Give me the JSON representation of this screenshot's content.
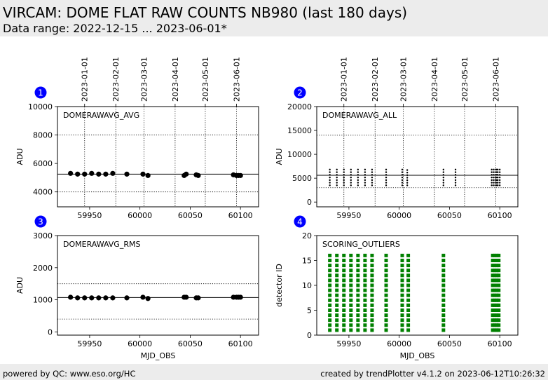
{
  "header": {
    "title": "VIRCAM: DOME FLAT RAW COUNTS NB980 (last 180 days)",
    "subtitle": "Data range: 2022-12-15 ... 2023-06-01*"
  },
  "footer": {
    "left": "powered by QC: www.eso.org/HC",
    "right": "created by trendPlotter v4.1.2 on 2023-06-12T10:26:32"
  },
  "colors": {
    "badge": "#0000ff",
    "points": "#000000",
    "scoring": "#008000"
  },
  "chart_data": [
    {
      "type": "scatter",
      "panel": "1",
      "label": "DOMERAWAVG_AVG",
      "xlabel": "",
      "ylabel": "ADU",
      "xlim": [
        59918,
        60118
      ],
      "ylim": [
        2950,
        10000
      ],
      "xticks": [
        59950,
        60000,
        60050,
        60100
      ],
      "yticks": [
        4000,
        6000,
        8000,
        10000
      ],
      "date_ticks": [
        {
          "mjd": 59945,
          "label": "2023-01-01"
        },
        {
          "mjd": 59976,
          "label": "2023-02-01"
        },
        {
          "mjd": 60004,
          "label": "2023-03-01"
        },
        {
          "mjd": 60035,
          "label": "2023-04-01"
        },
        {
          "mjd": 60065,
          "label": "2023-05-01"
        },
        {
          "mjd": 60096,
          "label": "2023-06-01"
        }
      ],
      "hlines": {
        "solid": 5250,
        "dotted": [
          4000,
          8000
        ]
      },
      "x": [
        59931,
        59938,
        59945,
        59952,
        59959,
        59966,
        59973,
        59987,
        60003,
        60008,
        60044,
        60046,
        60056,
        60058,
        60093,
        60096,
        60098,
        60100
      ],
      "y": [
        5300,
        5250,
        5250,
        5300,
        5250,
        5250,
        5300,
        5250,
        5250,
        5150,
        5150,
        5250,
        5200,
        5150,
        5200,
        5150,
        5150,
        5150
      ]
    },
    {
      "type": "scatter",
      "panel": "2",
      "label": "DOMERAWAVG_ALL",
      "xlabel": "",
      "ylabel": "ADU",
      "xlim": [
        59918,
        60118
      ],
      "ylim": [
        -1000,
        20000
      ],
      "xticks": [
        59950,
        60000,
        60050,
        60100
      ],
      "yticks": [
        0,
        5000,
        10000,
        15000,
        20000
      ],
      "date_ticks": [
        {
          "mjd": 59945,
          "label": "2023-01-01"
        },
        {
          "mjd": 59976,
          "label": "2023-02-01"
        },
        {
          "mjd": 60004,
          "label": "2023-03-01"
        },
        {
          "mjd": 60035,
          "label": "2023-04-01"
        },
        {
          "mjd": 60065,
          "label": "2023-05-01"
        },
        {
          "mjd": 60096,
          "label": "2023-06-01"
        }
      ],
      "hlines": {
        "solid": 5600,
        "dotted": [
          3000,
          14000
        ]
      },
      "x": [
        59931,
        59938,
        59945,
        59952,
        59959,
        59966,
        59973,
        59987,
        60003,
        60008,
        60044,
        60056,
        60092,
        60094,
        60096,
        60097,
        60098,
        60100
      ],
      "y_min": [
        3500,
        3500,
        3500,
        3500,
        3500,
        3500,
        3500,
        3500,
        3500,
        3500,
        3500,
        3500,
        3500,
        3500,
        3500,
        3500,
        3500,
        3500
      ],
      "y_max": [
        6800,
        6800,
        6800,
        6800,
        6800,
        6800,
        6800,
        6800,
        6800,
        6700,
        6800,
        6800,
        6800,
        6800,
        6800,
        6800,
        6800,
        6800
      ]
    },
    {
      "type": "scatter",
      "panel": "3",
      "label": "DOMERAWAVG_RMS",
      "xlabel": "MJD_OBS",
      "ylabel": "ADU",
      "xlim": [
        59918,
        60118
      ],
      "ylim": [
        -100,
        3000
      ],
      "xticks": [
        59950,
        60000,
        60050,
        60100
      ],
      "yticks": [
        0,
        1000,
        2000,
        3000
      ],
      "hlines": {
        "solid": 1070,
        "dotted": [
          400,
          1500
        ]
      },
      "x": [
        59931,
        59938,
        59945,
        59952,
        59959,
        59966,
        59973,
        59987,
        60003,
        60008,
        60044,
        60046,
        60056,
        60058,
        60093,
        60096,
        60098,
        60100
      ],
      "y": [
        1080,
        1060,
        1060,
        1060,
        1060,
        1060,
        1060,
        1060,
        1080,
        1040,
        1080,
        1080,
        1060,
        1060,
        1080,
        1080,
        1080,
        1080
      ]
    },
    {
      "type": "scatter",
      "panel": "4",
      "label": "SCORING_OUTLIERS",
      "xlabel": "MJD_OBS",
      "ylabel": "detector ID",
      "xlim": [
        59918,
        60118
      ],
      "ylim": [
        0,
        20
      ],
      "xticks": [
        59950,
        60000,
        60050,
        60100
      ],
      "yticks": [
        0,
        5,
        10,
        15,
        20
      ],
      "detectors": [
        1,
        2,
        3,
        4,
        5,
        6,
        7,
        8,
        9,
        10,
        11,
        12,
        13,
        14,
        15,
        16
      ],
      "x": [
        59931,
        59938,
        59945,
        59952,
        59959,
        59966,
        59973,
        59987,
        60003,
        60009,
        60044,
        60093,
        60095,
        60097,
        60099
      ]
    }
  ]
}
